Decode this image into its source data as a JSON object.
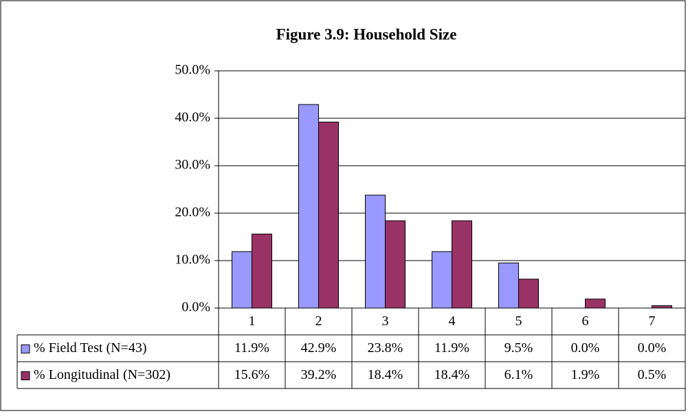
{
  "chart_data": {
    "type": "bar",
    "title": "Figure 3.9: Household Size",
    "categories": [
      "1",
      "2",
      "3",
      "4",
      "5",
      "6",
      "7"
    ],
    "series": [
      {
        "name": "% Field Test (N=43)",
        "color": "#9999ff",
        "values": [
          11.9,
          42.9,
          23.8,
          11.9,
          9.5,
          0.0,
          0.0
        ],
        "value_labels": [
          "11.9%",
          "42.9%",
          "23.8%",
          "11.9%",
          "9.5%",
          "0.0%",
          "0.0%"
        ]
      },
      {
        "name": "% Longitudinal (N=302)",
        "color": "#993366",
        "values": [
          15.6,
          39.2,
          18.4,
          18.4,
          6.1,
          1.9,
          0.5
        ],
        "value_labels": [
          "15.6%",
          "39.2%",
          "18.4%",
          "18.4%",
          "6.1%",
          "1.9%",
          "0.5%"
        ]
      }
    ],
    "ylim": [
      0,
      50
    ],
    "yticks": [
      {
        "value": 0,
        "label": "0.0%"
      },
      {
        "value": 10,
        "label": "10.0%"
      },
      {
        "value": 20,
        "label": "20.0%"
      },
      {
        "value": 30,
        "label": "30.0%"
      },
      {
        "value": 40,
        "label": "40.0%"
      },
      {
        "value": 50,
        "label": "50.0%"
      }
    ],
    "grid": true
  }
}
